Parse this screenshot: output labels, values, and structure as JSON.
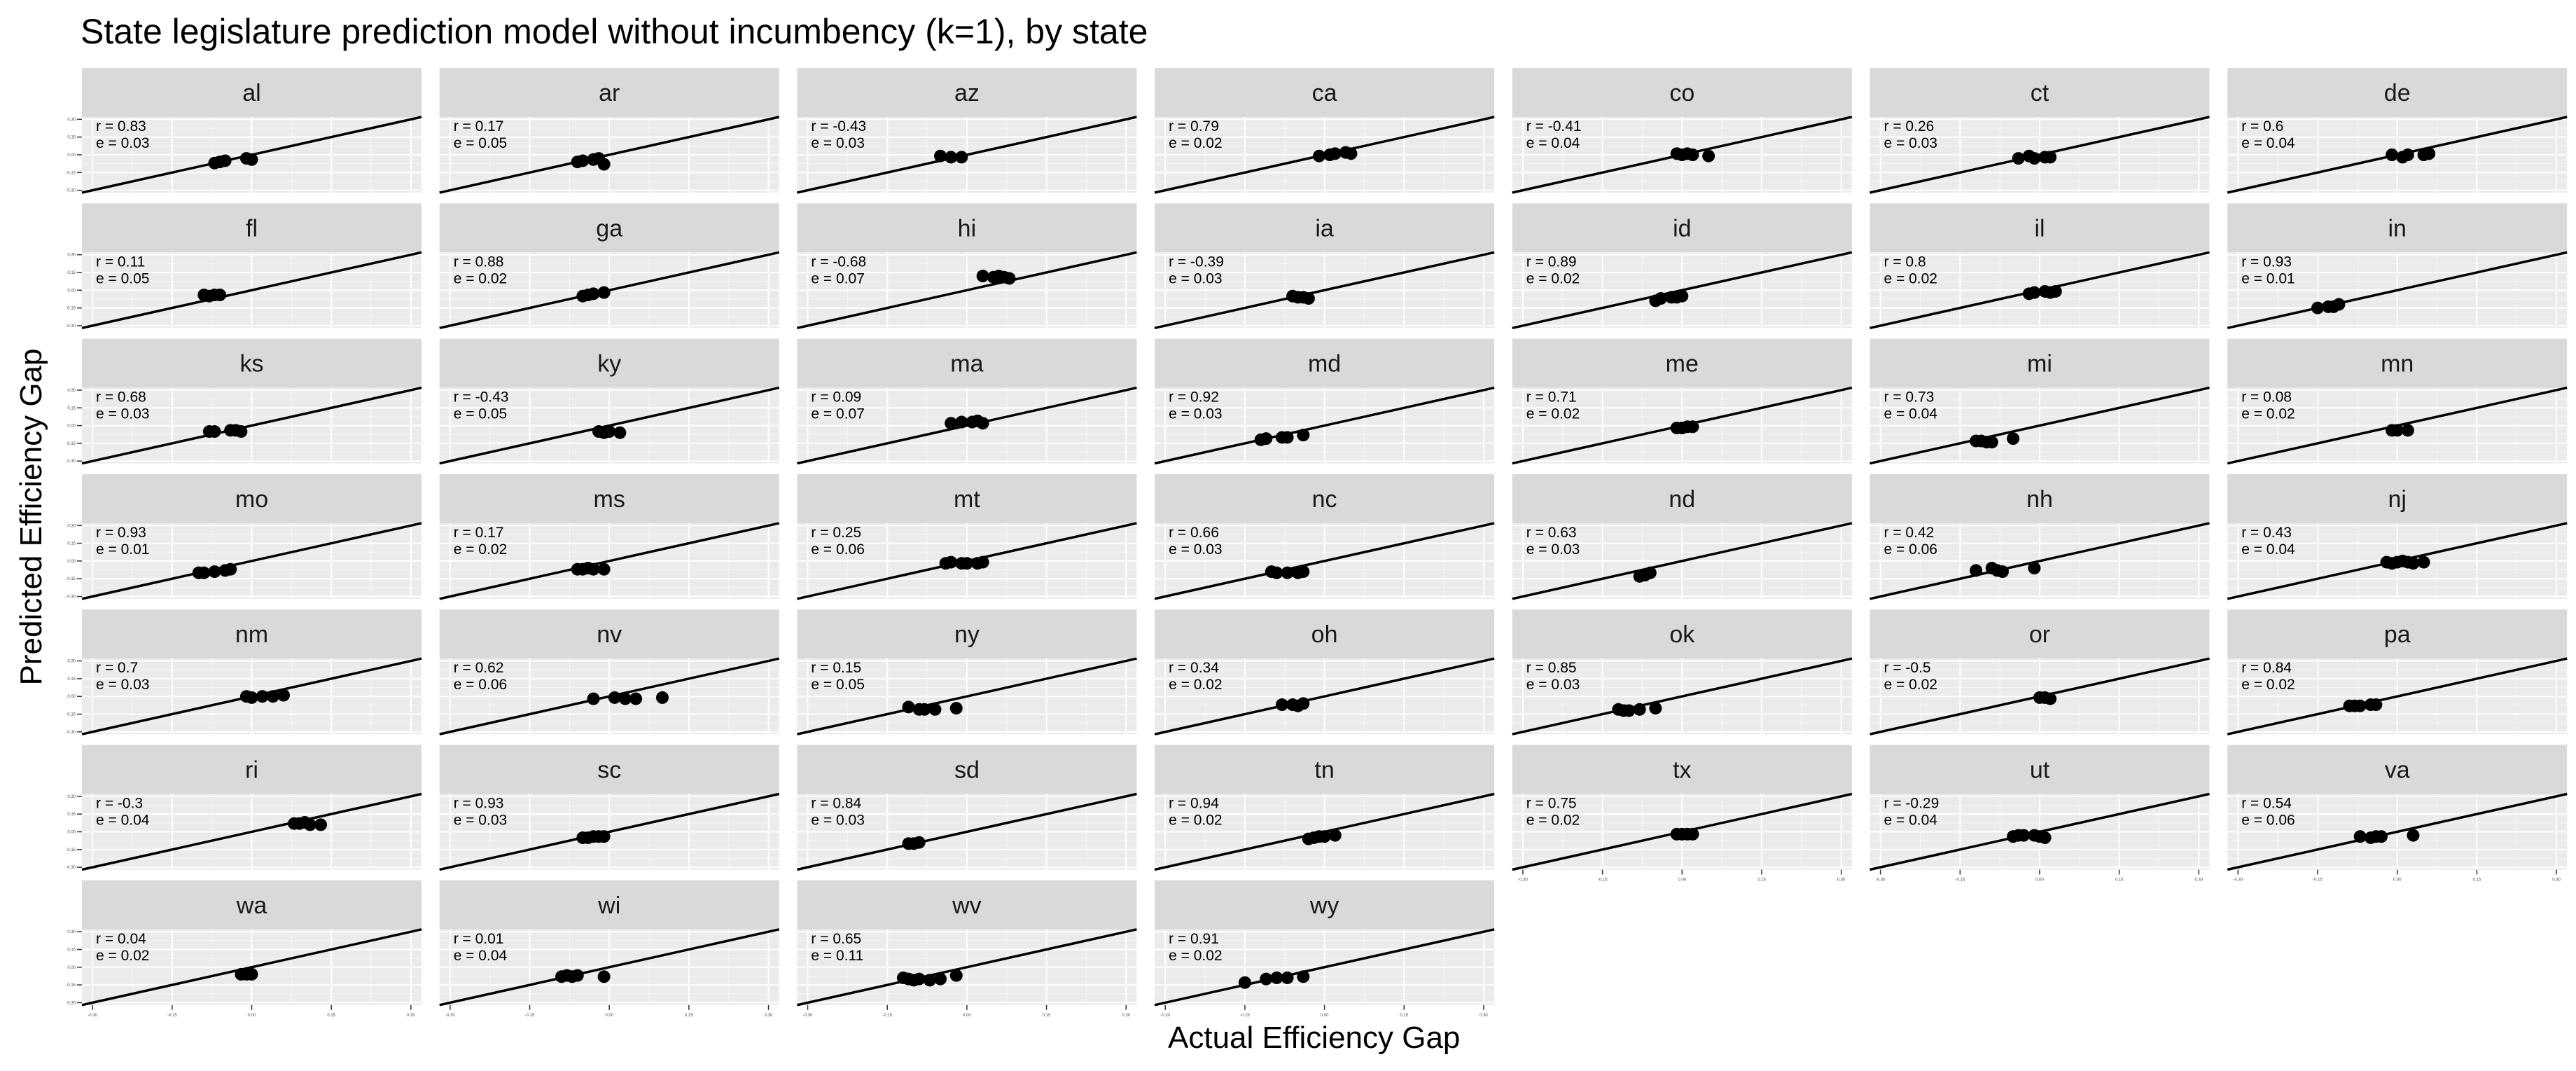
{
  "title": "State legislature prediction model without incumbency (k=1), by state",
  "chart_data": {
    "type": "scatter",
    "title": "State legislature prediction model without incumbency (k=1), by state",
    "xlabel": "Actual Efficiency Gap",
    "ylabel": "Predicted Efficiency Gap",
    "xlim": [
      -0.32,
      0.32
    ],
    "ylim": [
      -0.32,
      0.32
    ],
    "x_ticks": [
      "-0.30",
      "-0.15",
      "0.00",
      "0.15",
      "0.30"
    ],
    "y_ticks": [
      "-0.30",
      "-0.15",
      "0.00",
      "0.15",
      "0.30"
    ],
    "reference_line": "y = x",
    "facets": [
      {
        "state": "al",
        "r": "r = 0.83",
        "e": "e = 0.03",
        "x": [
          -0.07,
          -0.06,
          -0.05,
          -0.01,
          0.0
        ],
        "y": [
          -0.07,
          -0.06,
          -0.05,
          -0.03,
          -0.04
        ]
      },
      {
        "state": "ar",
        "r": "r = 0.17",
        "e": "e = 0.05",
        "x": [
          -0.06,
          -0.05,
          -0.03,
          -0.02,
          -0.01
        ],
        "y": [
          -0.06,
          -0.05,
          -0.04,
          -0.03,
          -0.08
        ]
      },
      {
        "state": "az",
        "r": "r = -0.43",
        "e": "e = 0.03",
        "x": [
          -0.05,
          -0.03,
          -0.01
        ],
        "y": [
          -0.01,
          -0.02,
          -0.02
        ]
      },
      {
        "state": "ca",
        "r": "r = 0.79",
        "e": "e = 0.02",
        "x": [
          -0.01,
          0.01,
          0.02,
          0.04,
          0.05
        ],
        "y": [
          -0.01,
          0.0,
          0.01,
          0.02,
          0.01
        ]
      },
      {
        "state": "co",
        "r": "r = -0.41",
        "e": "e = 0.04",
        "x": [
          -0.01,
          0.0,
          0.01,
          0.02,
          0.05
        ],
        "y": [
          0.01,
          0.0,
          0.01,
          0.0,
          -0.01
        ]
      },
      {
        "state": "ct",
        "r": "r = 0.26",
        "e": "e = 0.03",
        "x": [
          -0.04,
          -0.02,
          -0.01,
          0.01,
          0.02
        ],
        "y": [
          -0.03,
          -0.01,
          -0.03,
          -0.02,
          -0.02
        ]
      },
      {
        "state": "de",
        "r": "r = 0.6",
        "e": "e = 0.04",
        "x": [
          -0.01,
          0.01,
          0.02,
          0.05,
          0.06
        ],
        "y": [
          0.0,
          -0.02,
          0.0,
          0.0,
          0.01
        ]
      },
      {
        "state": "fl",
        "r": "r = 0.11",
        "e": "e = 0.05",
        "x": [
          -0.09,
          -0.08,
          -0.07,
          -0.06
        ],
        "y": [
          -0.04,
          -0.05,
          -0.04,
          -0.04
        ]
      },
      {
        "state": "ga",
        "r": "r = 0.88",
        "e": "e = 0.02",
        "x": [
          -0.05,
          -0.04,
          -0.03,
          -0.01
        ],
        "y": [
          -0.05,
          -0.04,
          -0.03,
          -0.02
        ]
      },
      {
        "state": "hi",
        "r": "r = -0.68",
        "e": "e = 0.07",
        "x": [
          0.03,
          0.05,
          0.06,
          0.07,
          0.08
        ],
        "y": [
          0.12,
          0.11,
          0.12,
          0.11,
          0.1
        ]
      },
      {
        "state": "ia",
        "r": "r = -0.39",
        "e": "e = 0.03",
        "x": [
          -0.06,
          -0.05,
          -0.04,
          -0.03
        ],
        "y": [
          -0.05,
          -0.06,
          -0.06,
          -0.07
        ]
      },
      {
        "state": "id",
        "r": "r = 0.89",
        "e": "e = 0.02",
        "x": [
          -0.05,
          -0.04,
          -0.02,
          -0.01,
          0.0
        ],
        "y": [
          -0.09,
          -0.07,
          -0.06,
          -0.06,
          -0.05
        ]
      },
      {
        "state": "il",
        "r": "r = 0.8",
        "e": "e = 0.02",
        "x": [
          -0.02,
          -0.01,
          0.01,
          0.02,
          0.03
        ],
        "y": [
          -0.03,
          -0.02,
          -0.01,
          -0.02,
          -0.01
        ]
      },
      {
        "state": "in",
        "r": "r = 0.93",
        "e": "e = 0.01",
        "x": [
          -0.15,
          -0.13,
          -0.12,
          -0.11
        ],
        "y": [
          -0.15,
          -0.14,
          -0.14,
          -0.12
        ]
      },
      {
        "state": "ks",
        "r": "r = 0.68",
        "e": "e = 0.03",
        "x": [
          -0.08,
          -0.07,
          -0.04,
          -0.03,
          -0.02
        ],
        "y": [
          -0.05,
          -0.05,
          -0.04,
          -0.04,
          -0.05
        ]
      },
      {
        "state": "ky",
        "r": "r = -0.43",
        "e": "e = 0.05",
        "x": [
          -0.02,
          -0.01,
          0.0,
          0.02
        ],
        "y": [
          -0.05,
          -0.06,
          -0.05,
          -0.06
        ]
      },
      {
        "state": "ma",
        "r": "r = 0.09",
        "e": "e = 0.07",
        "x": [
          -0.03,
          -0.01,
          0.01,
          0.02,
          0.03
        ],
        "y": [
          0.02,
          0.03,
          0.03,
          0.04,
          0.02
        ]
      },
      {
        "state": "md",
        "r": "r = 0.92",
        "e": "e = 0.03",
        "x": [
          -0.12,
          -0.11,
          -0.08,
          -0.07,
          -0.04
        ],
        "y": [
          -0.12,
          -0.11,
          -0.1,
          -0.1,
          -0.08
        ]
      },
      {
        "state": "me",
        "r": "r = 0.71",
        "e": "e = 0.02",
        "x": [
          -0.01,
          0.0,
          0.01,
          0.02
        ],
        "y": [
          -0.02,
          -0.02,
          -0.01,
          -0.01
        ]
      },
      {
        "state": "mi",
        "r": "r = 0.73",
        "e": "e = 0.04",
        "x": [
          -0.12,
          -0.11,
          -0.1,
          -0.09,
          -0.05
        ],
        "y": [
          -0.13,
          -0.13,
          -0.14,
          -0.14,
          -0.11
        ]
      },
      {
        "state": "mn",
        "r": "r = 0.08",
        "e": "e = 0.02",
        "x": [
          -0.01,
          0.0,
          0.02
        ],
        "y": [
          -0.04,
          -0.04,
          -0.04
        ]
      },
      {
        "state": "mo",
        "r": "r = 0.93",
        "e": "e = 0.01",
        "x": [
          -0.1,
          -0.09,
          -0.07,
          -0.05,
          -0.04
        ],
        "y": [
          -0.1,
          -0.1,
          -0.09,
          -0.08,
          -0.07
        ]
      },
      {
        "state": "ms",
        "r": "r = 0.17",
        "e": "e = 0.02",
        "x": [
          -0.06,
          -0.05,
          -0.04,
          -0.03,
          -0.01
        ],
        "y": [
          -0.07,
          -0.07,
          -0.06,
          -0.07,
          -0.07
        ]
      },
      {
        "state": "mt",
        "r": "r = 0.25",
        "e": "e = 0.06",
        "x": [
          -0.04,
          -0.03,
          -0.01,
          0.0,
          0.02,
          0.03
        ],
        "y": [
          -0.02,
          -0.01,
          -0.02,
          -0.02,
          -0.02,
          -0.01
        ]
      },
      {
        "state": "nc",
        "r": "r = 0.66",
        "e": "e = 0.03",
        "x": [
          -0.1,
          -0.09,
          -0.07,
          -0.05,
          -0.04
        ],
        "y": [
          -0.09,
          -0.1,
          -0.1,
          -0.1,
          -0.09
        ]
      },
      {
        "state": "nd",
        "r": "r = 0.63",
        "e": "e = 0.03",
        "x": [
          -0.08,
          -0.07,
          -0.06
        ],
        "y": [
          -0.13,
          -0.12,
          -0.1
        ]
      },
      {
        "state": "nh",
        "r": "r = 0.42",
        "e": "e = 0.06",
        "x": [
          -0.12,
          -0.09,
          -0.08,
          -0.07,
          -0.01
        ],
        "y": [
          -0.08,
          -0.06,
          -0.08,
          -0.09,
          -0.06
        ]
      },
      {
        "state": "nj",
        "r": "r = 0.43",
        "e": "e = 0.04",
        "x": [
          -0.02,
          -0.01,
          0.0,
          0.01,
          0.02,
          0.03,
          0.05
        ],
        "y": [
          -0.01,
          -0.02,
          -0.01,
          0.0,
          -0.01,
          -0.02,
          -0.01
        ]
      },
      {
        "state": "nm",
        "r": "r = 0.7",
        "e": "e = 0.03",
        "x": [
          -0.01,
          0.0,
          0.02,
          0.04,
          0.06
        ],
        "y": [
          0.0,
          -0.01,
          0.0,
          0.0,
          0.01
        ]
      },
      {
        "state": "nv",
        "r": "r = 0.62",
        "e": "e = 0.06",
        "x": [
          -0.03,
          0.01,
          0.03,
          0.05,
          0.1
        ],
        "y": [
          -0.02,
          -0.01,
          -0.02,
          -0.02,
          -0.01
        ]
      },
      {
        "state": "ny",
        "r": "r = 0.15",
        "e": "e = 0.05",
        "x": [
          -0.11,
          -0.09,
          -0.08,
          -0.06,
          -0.02
        ],
        "y": [
          -0.09,
          -0.11,
          -0.11,
          -0.11,
          -0.1
        ]
      },
      {
        "state": "oh",
        "r": "r = 0.34",
        "e": "e = 0.02",
        "x": [
          -0.08,
          -0.06,
          -0.05,
          -0.04
        ],
        "y": [
          -0.07,
          -0.07,
          -0.08,
          -0.06
        ]
      },
      {
        "state": "ok",
        "r": "r = 0.85",
        "e": "e = 0.03",
        "x": [
          -0.12,
          -0.11,
          -0.1,
          -0.08,
          -0.05
        ],
        "y": [
          -0.11,
          -0.12,
          -0.12,
          -0.11,
          -0.1
        ]
      },
      {
        "state": "or",
        "r": "r = -0.5",
        "e": "e = 0.02",
        "x": [
          0.0,
          0.01,
          0.02
        ],
        "y": [
          -0.01,
          -0.01,
          -0.02
        ]
      },
      {
        "state": "pa",
        "r": "r = 0.84",
        "e": "e = 0.02",
        "x": [
          -0.09,
          -0.08,
          -0.07,
          -0.05,
          -0.04
        ],
        "y": [
          -0.08,
          -0.08,
          -0.08,
          -0.07,
          -0.07
        ]
      },
      {
        "state": "ri",
        "r": "r = -0.3",
        "e": "e = 0.04",
        "x": [
          0.08,
          0.09,
          0.1,
          0.11,
          0.13
        ],
        "y": [
          0.07,
          0.07,
          0.08,
          0.06,
          0.06
        ]
      },
      {
        "state": "sc",
        "r": "r = 0.93",
        "e": "e = 0.03",
        "x": [
          -0.05,
          -0.04,
          -0.03,
          -0.02,
          -0.01
        ],
        "y": [
          -0.05,
          -0.05,
          -0.04,
          -0.04,
          -0.04
        ]
      },
      {
        "state": "sd",
        "r": "r = 0.84",
        "e": "e = 0.03",
        "x": [
          -0.11,
          -0.1,
          -0.09
        ],
        "y": [
          -0.1,
          -0.1,
          -0.09
        ]
      },
      {
        "state": "tn",
        "r": "r = 0.94",
        "e": "e = 0.02",
        "x": [
          -0.03,
          -0.02,
          -0.01,
          0.0,
          0.02
        ],
        "y": [
          -0.06,
          -0.05,
          -0.04,
          -0.04,
          -0.03
        ]
      },
      {
        "state": "tx",
        "r": "r = 0.75",
        "e": "e = 0.02",
        "x": [
          -0.01,
          0.0,
          0.01,
          0.02
        ],
        "y": [
          -0.02,
          -0.02,
          -0.02,
          -0.02
        ]
      },
      {
        "state": "ut",
        "r": "r = -0.29",
        "e": "e = 0.04",
        "x": [
          -0.05,
          -0.04,
          -0.03,
          -0.01,
          0.0,
          0.01
        ],
        "y": [
          -0.04,
          -0.03,
          -0.03,
          -0.03,
          -0.04,
          -0.05
        ]
      },
      {
        "state": "va",
        "r": "r = 0.54",
        "e": "e = 0.06",
        "x": [
          -0.07,
          -0.05,
          -0.04,
          -0.03,
          0.03
        ],
        "y": [
          -0.04,
          -0.05,
          -0.04,
          -0.04,
          -0.03
        ]
      },
      {
        "state": "wa",
        "r": "r = 0.04",
        "e": "e = 0.02",
        "x": [
          -0.02,
          -0.01,
          0.0
        ],
        "y": [
          -0.06,
          -0.06,
          -0.06
        ]
      },
      {
        "state": "wi",
        "r": "r = 0.01",
        "e": "e = 0.04",
        "x": [
          -0.09,
          -0.08,
          -0.07,
          -0.06,
          -0.01
        ],
        "y": [
          -0.08,
          -0.07,
          -0.08,
          -0.07,
          -0.08
        ]
      },
      {
        "state": "wv",
        "r": "r = 0.65",
        "e": "e = 0.11",
        "x": [
          -0.12,
          -0.11,
          -0.1,
          -0.09,
          -0.07,
          -0.05,
          -0.02
        ],
        "y": [
          -0.09,
          -0.1,
          -0.11,
          -0.1,
          -0.11,
          -0.1,
          -0.07
        ]
      },
      {
        "state": "wy",
        "r": "r = 0.91",
        "e": "e = 0.02",
        "x": [
          -0.15,
          -0.11,
          -0.09,
          -0.07,
          -0.04
        ],
        "y": [
          -0.13,
          -0.1,
          -0.09,
          -0.09,
          -0.08
        ]
      }
    ]
  }
}
